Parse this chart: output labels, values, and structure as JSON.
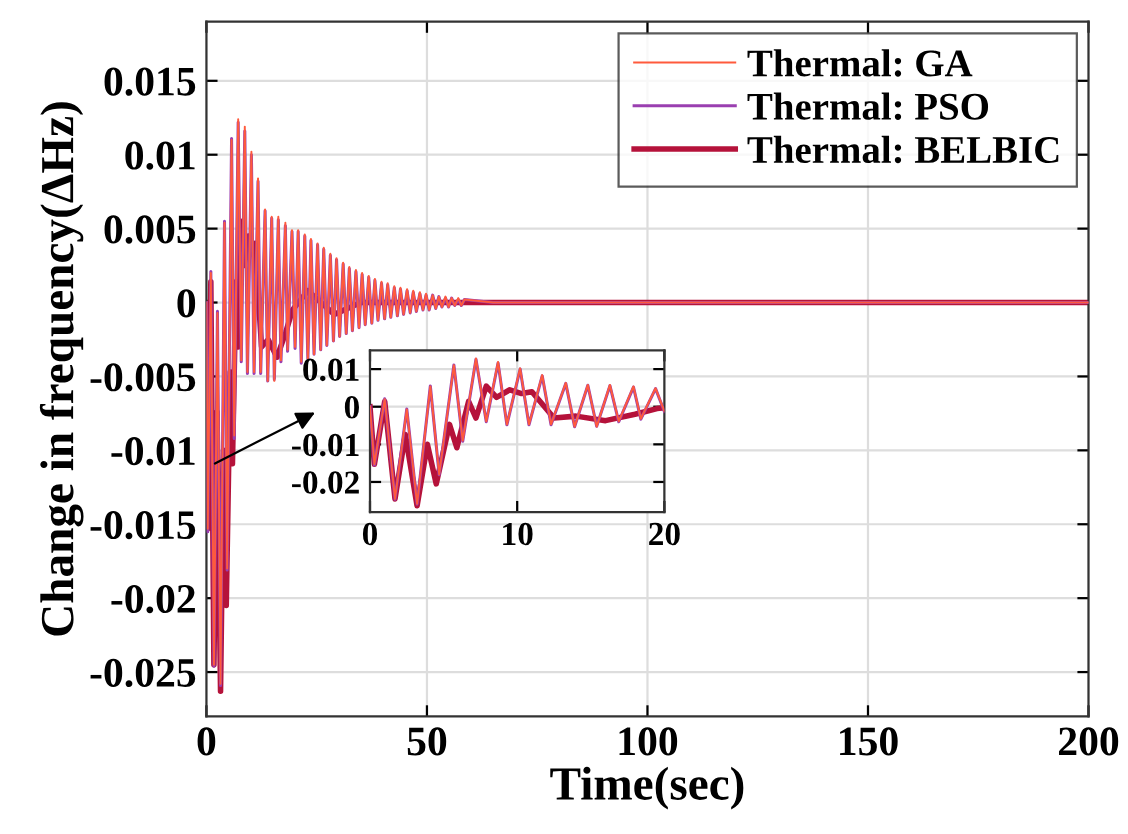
{
  "chart_data": [
    {
      "type": "line",
      "xlabel": "Time(sec)",
      "ylabel": "Change in frequency(ΔHz)",
      "xlim": [
        0,
        200
      ],
      "ylim": [
        -0.028,
        0.019
      ],
      "xticks": [
        0,
        50,
        100,
        150,
        200
      ],
      "yticks": [
        -0.025,
        -0.02,
        -0.015,
        -0.01,
        -0.005,
        0,
        0.005,
        0.01,
        0.015
      ],
      "grid": true,
      "legend": "top right",
      "series": [
        {
          "name": "Thermal: GA",
          "color": "#ff5a3c",
          "x": [
            0,
            0.3,
            1.0,
            1.7,
            2.5,
            3.2,
            4.1,
            4.7,
            5.7,
            6.3,
            7.2,
            7.9,
            8.7,
            9.3,
            10.2,
            10.8,
            11.7,
            12.3,
            13.3,
            13.9,
            14.8,
            15.4,
            16.3,
            16.9,
            17.9,
            18.4,
            19.4,
            20.1,
            20.8,
            21.5,
            22.3,
            23.0,
            23.7,
            24.4,
            25.2,
            25.9,
            26.6,
            27.3,
            28.1,
            28.8,
            29.5,
            30.2,
            31.0,
            31.7,
            32.4,
            33.1,
            33.9,
            34.6,
            35.3,
            36.0,
            36.8,
            37.5,
            38.2,
            38.9,
            39.7,
            40.4,
            41.1,
            41.8,
            42.6,
            43.3,
            44.0,
            44.7,
            45.5,
            46.2,
            46.9,
            47.6,
            48.4,
            49.1,
            49.8,
            50.5,
            51.3,
            52.0,
            52.7,
            53.4,
            54.2,
            54.9,
            55.6,
            56.3,
            57.1,
            57.8,
            58.5,
            65,
            200
          ],
          "values": [
            0,
            -0.0153,
            0.002,
            -0.0245,
            -0.0007,
            -0.0258,
            0.0054,
            -0.018,
            0.011,
            -0.009,
            0.0124,
            -0.0039,
            0.0119,
            -0.0047,
            0.0102,
            -0.0047,
            0.0084,
            -0.0047,
            0.0063,
            -0.0053,
            0.0058,
            -0.0053,
            0.0058,
            -0.0039,
            0.0054,
            -0.0032,
            0.0049,
            -0.003,
            0.0049,
            -0.004,
            0.0046,
            -0.0038,
            0.0043,
            -0.0035,
            0.004,
            -0.0032,
            0.0037,
            -0.0029,
            0.0033,
            -0.0026,
            0.003,
            -0.0023,
            0.0027,
            -0.0021,
            0.0024,
            -0.0019,
            0.0022,
            -0.0017,
            0.002,
            -0.0015,
            0.0018,
            -0.0014,
            0.0016,
            -0.0012,
            0.0014,
            -0.0011,
            0.0013,
            -0.001,
            0.0011,
            -0.0009,
            0.001,
            -0.0008,
            0.0009,
            -0.0007,
            0.0008,
            -0.0006,
            0.0007,
            -0.0005,
            0.0006,
            -0.0005,
            0.0005,
            -0.0004,
            0.0004,
            -0.0003,
            0.0004,
            -0.0003,
            0.0003,
            -0.0002,
            0.0003,
            -0.0002,
            0.0002,
            0,
            0
          ]
        },
        {
          "name": "Thermal: PSO",
          "color": "#9a3fb0",
          "x": [
            0,
            0.3,
            1.0,
            1.7,
            2.5,
            3.2,
            4.1,
            4.7,
            5.7,
            6.3,
            7.2,
            7.9,
            8.7,
            9.3,
            10.2,
            10.8,
            11.7,
            12.3,
            13.3,
            13.9,
            14.8,
            15.4,
            16.3,
            16.9,
            17.9,
            18.4,
            19.4,
            20.1,
            20.8,
            21.5,
            22.3,
            23.0,
            23.7,
            24.4,
            25.2,
            25.9,
            26.6,
            27.3,
            28.1,
            28.8,
            29.5,
            30.2,
            31.0,
            31.7,
            32.4,
            33.1,
            33.9,
            34.6,
            35.3,
            36.0,
            36.8,
            37.5,
            38.2,
            38.9,
            39.7,
            40.4,
            41.1,
            41.8,
            42.6,
            43.3,
            44.0,
            44.7,
            45.5,
            46.2,
            46.9,
            47.6,
            48.4,
            49.1,
            49.8,
            50.5,
            51.3,
            52.0,
            52.7,
            53.4,
            54.2,
            54.9,
            55.6,
            56.3,
            57.1,
            57.8,
            58.5,
            65,
            200
          ],
          "values": [
            0,
            -0.0155,
            0.0021,
            -0.0246,
            -0.0006,
            -0.0259,
            0.0055,
            -0.0181,
            0.0111,
            -0.0092,
            0.0122,
            -0.004,
            0.0116,
            -0.0048,
            0.01,
            -0.0048,
            0.0082,
            -0.0048,
            0.0062,
            -0.0053,
            0.0057,
            -0.0052,
            0.0056,
            -0.004,
            0.0052,
            -0.0033,
            0.0048,
            -0.0031,
            0.0048,
            -0.0041,
            0.0045,
            -0.0038,
            0.0042,
            -0.0035,
            0.0039,
            -0.0032,
            0.0036,
            -0.0029,
            0.0032,
            -0.0026,
            0.0029,
            -0.0023,
            0.0026,
            -0.0021,
            0.0023,
            -0.0019,
            0.0021,
            -0.0017,
            0.0019,
            -0.0015,
            0.0017,
            -0.0014,
            0.0015,
            -0.0012,
            0.0013,
            -0.0011,
            0.0012,
            -0.001,
            0.001,
            -0.0009,
            0.0009,
            -0.0008,
            0.0008,
            -0.0007,
            0.0007,
            -0.0006,
            0.0006,
            -0.0005,
            0.0005,
            -0.0005,
            0.0005,
            -0.0004,
            0.0004,
            -0.0003,
            0.0003,
            -0.0003,
            0.0003,
            -0.0002,
            0.0002,
            -0.0002,
            0.0002,
            0,
            0
          ]
        },
        {
          "name": "Thermal: BELBIC",
          "color": "#b5123a",
          "x": [
            0,
            0.3,
            1.0,
            1.7,
            2.4,
            3.2,
            3.9,
            4.5,
            5.4,
            5.9,
            6.7,
            7.2,
            7.9,
            8.6,
            9.5,
            10.3,
            11.0,
            12.5,
            14.0,
            16.0,
            18.0,
            19.5,
            23.0,
            29.0,
            35.0,
            200
          ],
          "values": [
            0,
            -0.0153,
            0.0014,
            -0.0245,
            -0.0074,
            -0.0263,
            -0.01,
            -0.0205,
            -0.0047,
            -0.0109,
            0.0014,
            -0.003,
            0.0055,
            0.0025,
            0.0045,
            0.0035,
            0.004,
            -0.003,
            -0.0025,
            -0.0037,
            -0.002,
            -0.0005,
            0.0008,
            -0.0008,
            0,
            0
          ]
        }
      ]
    },
    {
      "type": "line",
      "xlim": [
        0,
        20
      ],
      "ylim": [
        -0.028,
        0.015
      ],
      "xticks": [
        0,
        10,
        20
      ],
      "yticks": [
        -0.02,
        -0.01,
        0,
        0.01
      ],
      "grid": true,
      "series": [
        {
          "color": "#ff5a3c",
          "x": [
            0,
            0.3,
            1.0,
            1.7,
            2.5,
            3.2,
            4.1,
            4.7,
            5.7,
            6.3,
            7.2,
            7.9,
            8.7,
            9.3,
            10.2,
            10.8,
            11.7,
            12.3,
            13.3,
            13.9,
            14.8,
            15.4,
            16.3,
            16.9,
            17.9,
            18.4,
            19.4,
            20
          ],
          "values": [
            0,
            -0.0153,
            0.002,
            -0.0245,
            -0.0007,
            -0.0258,
            0.0054,
            -0.018,
            0.011,
            -0.009,
            0.0128,
            -0.0039,
            0.0119,
            -0.0047,
            0.0102,
            -0.0047,
            0.0084,
            -0.0047,
            0.0063,
            -0.0053,
            0.0058,
            -0.0053,
            0.0058,
            -0.0039,
            0.0054,
            -0.0032,
            0.0049,
            -0.0012
          ]
        },
        {
          "color": "#9a3fb0",
          "x": [
            0,
            0.3,
            1.0,
            1.7,
            2.5,
            3.2,
            4.1,
            4.7,
            5.7,
            6.3,
            7.2,
            7.9,
            8.7,
            9.3,
            10.2,
            10.8,
            11.7,
            12.3,
            13.3,
            13.9,
            14.8,
            15.4,
            16.3,
            16.9,
            17.9,
            18.4,
            19.4,
            20
          ],
          "values": [
            0,
            -0.0155,
            0.0021,
            -0.0246,
            -0.0006,
            -0.0259,
            0.0055,
            -0.0181,
            0.0111,
            -0.0092,
            0.0126,
            -0.004,
            0.0116,
            -0.0048,
            0.01,
            -0.0048,
            0.0082,
            -0.0048,
            0.0062,
            -0.0053,
            0.0057,
            -0.0052,
            0.0056,
            -0.004,
            0.0052,
            -0.0033,
            0.0048,
            -0.0013
          ]
        },
        {
          "color": "#b5123a",
          "x": [
            0,
            0.3,
            1.0,
            1.7,
            2.4,
            3.2,
            3.9,
            4.5,
            5.4,
            5.9,
            6.7,
            7.2,
            7.9,
            8.6,
            9.5,
            10.3,
            11.0,
            12.5,
            14.0,
            16.0,
            18.0,
            19.5,
            20
          ],
          "values": [
            0,
            -0.0153,
            0.0014,
            -0.0245,
            -0.0074,
            -0.0263,
            -0.01,
            -0.0205,
            -0.0047,
            -0.0109,
            0.0014,
            -0.003,
            0.0055,
            0.0025,
            0.0045,
            0.0035,
            0.004,
            -0.003,
            -0.0025,
            -0.0037,
            -0.002,
            -0.0005,
            -0.0003
          ]
        }
      ]
    }
  ]
}
